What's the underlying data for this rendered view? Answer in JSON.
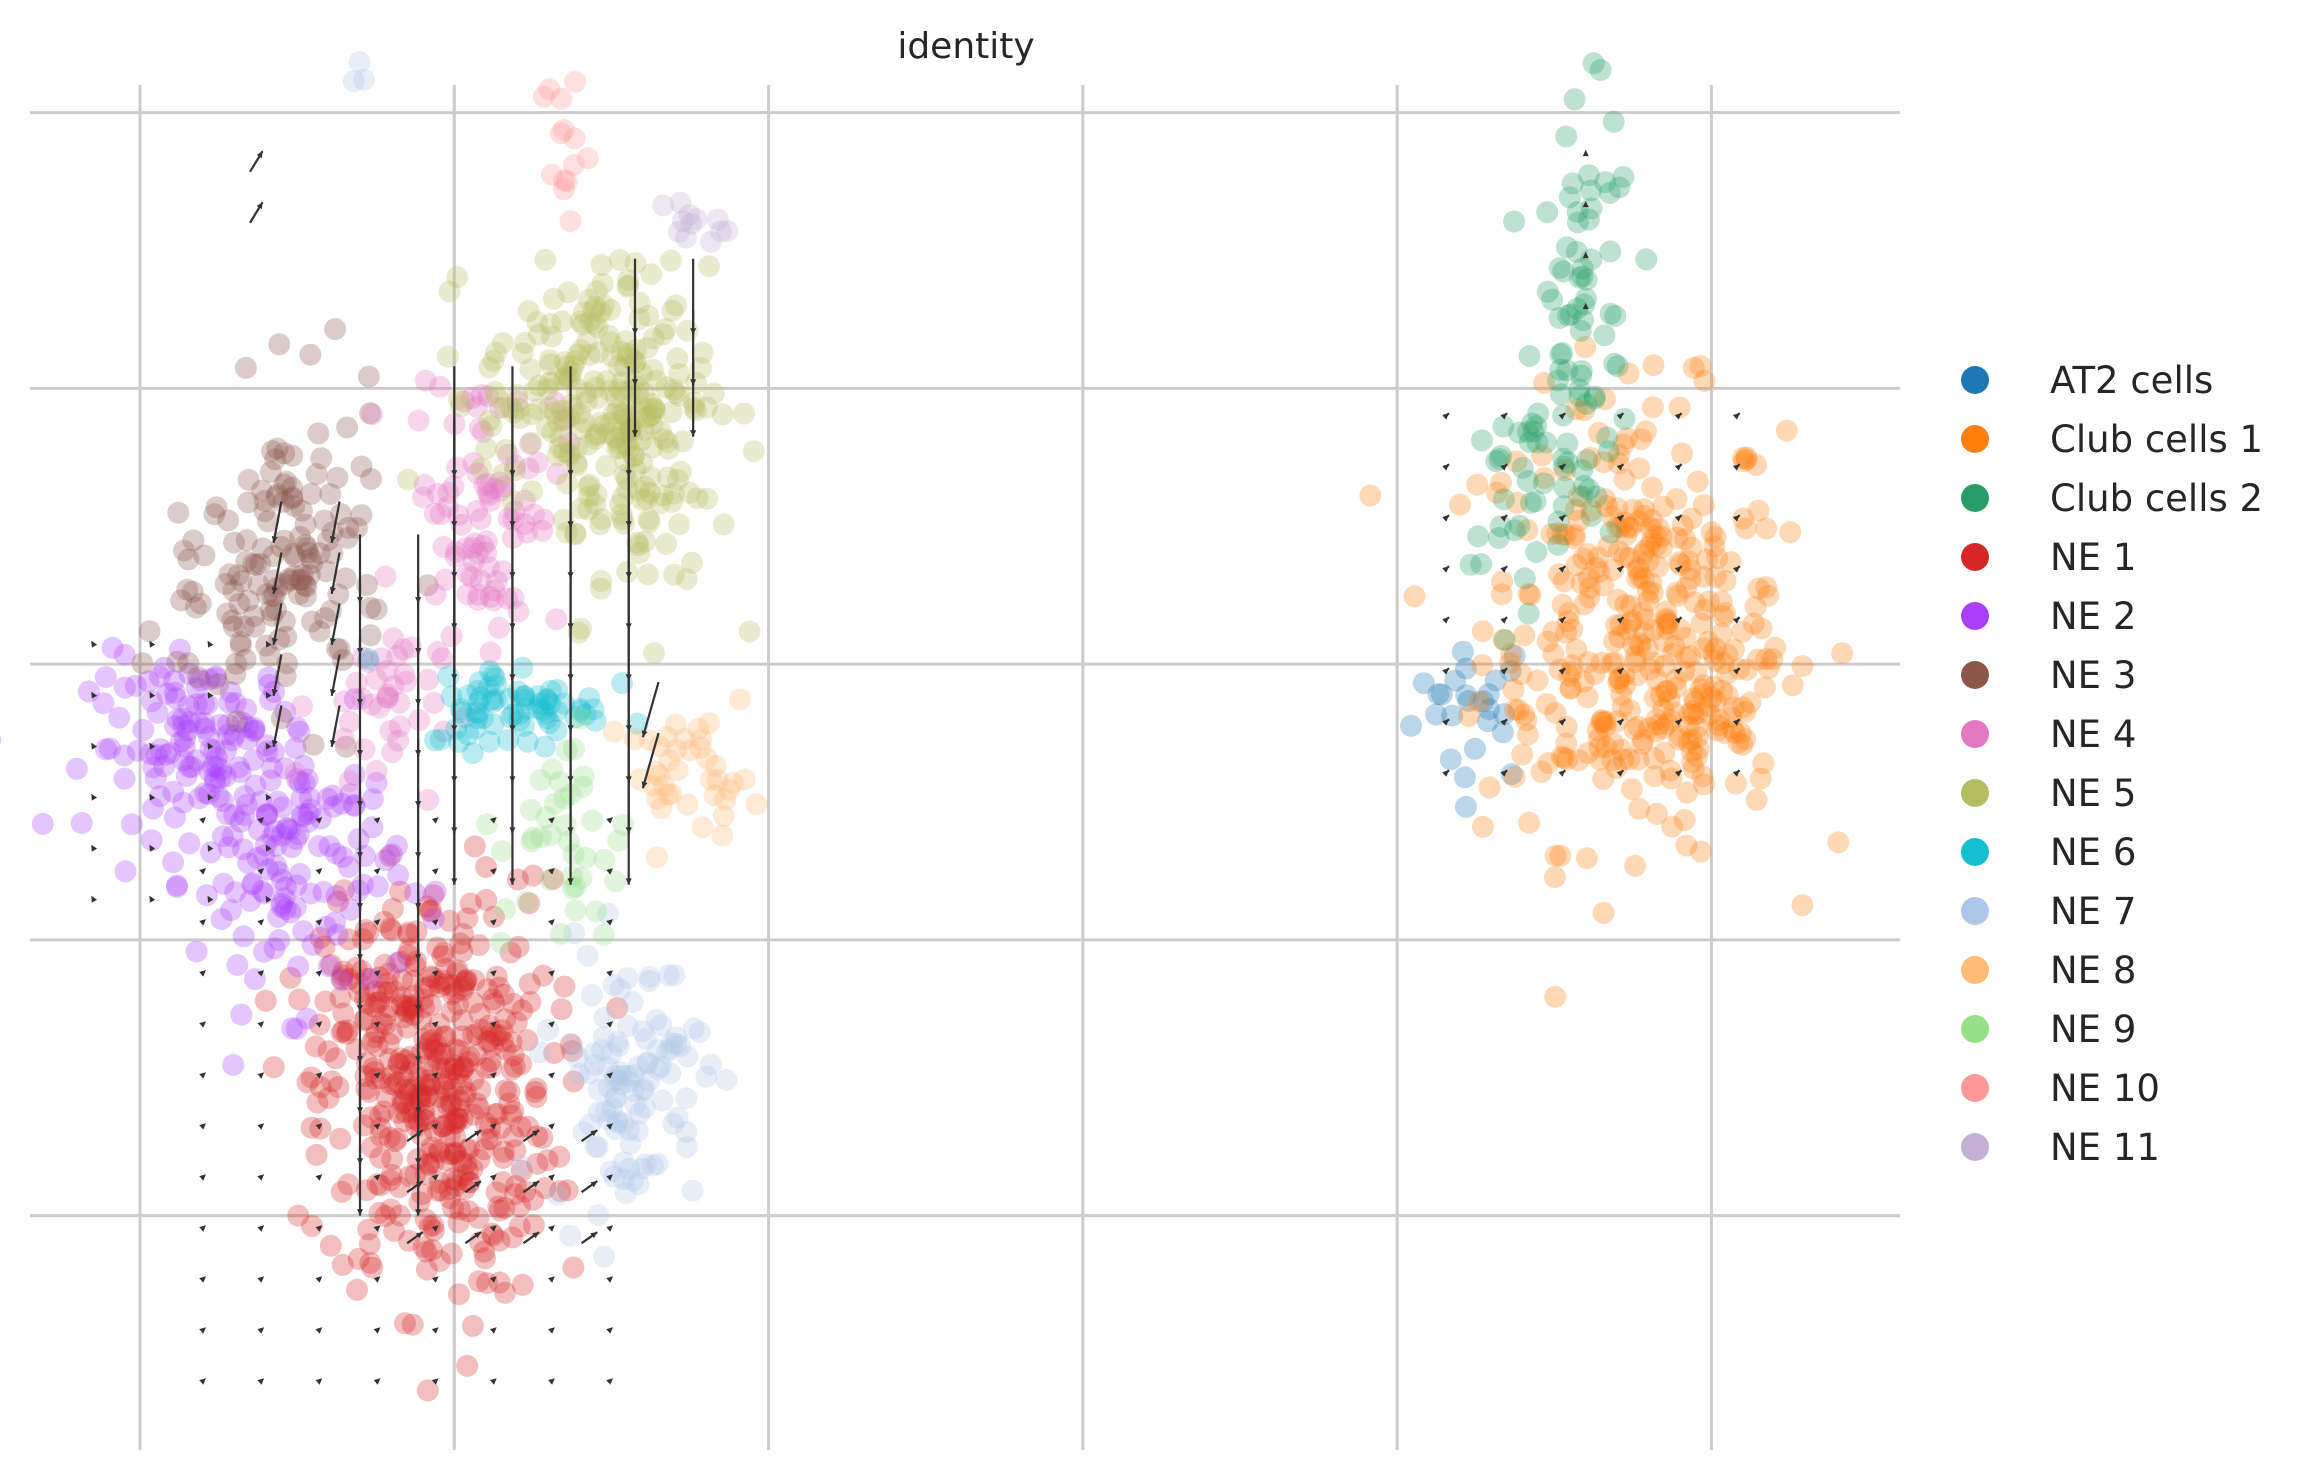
{
  "chart_data": {
    "type": "scatter",
    "title": "identity",
    "xlabel": "",
    "ylabel": "",
    "grid": true,
    "legend_position": "right",
    "x_gridlines": [
      -4,
      -2,
      0,
      2,
      4,
      6
    ],
    "y_gridlines": [
      -4,
      -2,
      0,
      2,
      4
    ],
    "xlim": [
      -4.7,
      7.2
    ],
    "ylim": [
      -5.7,
      4.2
    ],
    "overlay": "velocity-arrows",
    "series": [
      {
        "name": "AT2 cells",
        "color": "#1f77b4",
        "clusters": [
          {
            "cx": 4.5,
            "cy": -0.3,
            "sx": 0.25,
            "sy": 0.35,
            "n": 25
          }
        ]
      },
      {
        "name": "Club cells 1",
        "color": "#ff7f0e",
        "clusters": [
          {
            "cx": 5.5,
            "cy": 0.3,
            "sx": 0.6,
            "sy": 1.0,
            "n": 330
          },
          {
            "cx": 5.9,
            "cy": -0.4,
            "sx": 0.35,
            "sy": 0.35,
            "n": 60
          }
        ]
      },
      {
        "name": "Club cells 2",
        "color": "#279e68",
        "clusters": [
          {
            "cx": 5.2,
            "cy": 2.4,
            "sx": 0.2,
            "sy": 1.0,
            "n": 80
          },
          {
            "cx": 4.8,
            "cy": 1.3,
            "sx": 0.25,
            "sy": 0.35,
            "n": 30
          }
        ]
      },
      {
        "name": "NE 1",
        "color": "#d62728",
        "clusters": [
          {
            "cx": -2.1,
            "cy": -3.1,
            "sx": 0.45,
            "sy": 0.95,
            "n": 420
          },
          {
            "cx": -2.6,
            "cy": -2.6,
            "sx": 0.25,
            "sy": 0.5,
            "n": 40
          }
        ]
      },
      {
        "name": "NE 2",
        "color": "#aa40fc",
        "clusters": [
          {
            "cx": -3.6,
            "cy": -0.6,
            "sx": 0.45,
            "sy": 0.4,
            "n": 130
          },
          {
            "cx": -3.0,
            "cy": -1.5,
            "sx": 0.4,
            "sy": 0.6,
            "n": 120
          }
        ]
      },
      {
        "name": "NE 3",
        "color": "#8c564b",
        "clusters": [
          {
            "cx": -3.0,
            "cy": 0.8,
            "sx": 0.35,
            "sy": 0.7,
            "n": 110
          },
          {
            "cx": -3.4,
            "cy": 0.3,
            "sx": 0.3,
            "sy": 0.4,
            "n": 40
          }
        ]
      },
      {
        "name": "NE 4",
        "color": "#e377c2",
        "clusters": [
          {
            "cx": -1.8,
            "cy": 1.2,
            "sx": 0.3,
            "sy": 0.6,
            "n": 90
          },
          {
            "cx": -2.5,
            "cy": -0.3,
            "sx": 0.25,
            "sy": 0.4,
            "n": 40
          }
        ]
      },
      {
        "name": "NE 5",
        "color": "#b5bd61",
        "clusters": [
          {
            "cx": -1.1,
            "cy": 2.0,
            "sx": 0.45,
            "sy": 0.55,
            "n": 220
          },
          {
            "cx": -0.8,
            "cy": 1.1,
            "sx": 0.3,
            "sy": 0.5,
            "n": 60
          }
        ]
      },
      {
        "name": "NE 6",
        "color": "#17becf",
        "clusters": [
          {
            "cx": -1.6,
            "cy": -0.3,
            "sx": 0.35,
            "sy": 0.2,
            "n": 70
          }
        ]
      },
      {
        "name": "NE 7",
        "color": "#aec7e8",
        "clusters": [
          {
            "cx": -0.9,
            "cy": -3.0,
            "sx": 0.3,
            "sy": 0.6,
            "n": 110
          },
          {
            "cx": -2.6,
            "cy": 4.3,
            "sx": 0.05,
            "sy": 0.05,
            "n": 3
          }
        ]
      },
      {
        "name": "NE 8",
        "color": "#ffbb78",
        "clusters": [
          {
            "cx": -0.5,
            "cy": -0.8,
            "sx": 0.25,
            "sy": 0.25,
            "n": 40
          }
        ]
      },
      {
        "name": "NE 9",
        "color": "#98df8a",
        "clusters": [
          {
            "cx": -1.3,
            "cy": -1.3,
            "sx": 0.25,
            "sy": 0.55,
            "n": 40
          }
        ]
      },
      {
        "name": "NE 10",
        "color": "#ff9896",
        "clusters": [
          {
            "cx": -1.3,
            "cy": 3.8,
            "sx": 0.1,
            "sy": 0.4,
            "n": 14
          }
        ]
      },
      {
        "name": "NE 11",
        "color": "#c5b0d5",
        "clusters": [
          {
            "cx": -0.5,
            "cy": 3.2,
            "sx": 0.12,
            "sy": 0.12,
            "n": 12
          }
        ]
      }
    ],
    "arrow_regions": [
      {
        "x": [
          -2.0,
          -0.7
        ],
        "y": [
          -0.8,
          2.5
        ],
        "dx": 0,
        "dy": -0.8
      },
      {
        "x": [
          -2.6,
          -2.1
        ],
        "y": [
          -3.5,
          1.2
        ],
        "dx": 0,
        "dy": -0.5
      },
      {
        "x": [
          -3.1,
          -2.7
        ],
        "y": [
          -0.3,
          1.5
        ],
        "dx": -0.05,
        "dy": -0.3
      },
      {
        "x": [
          -0.85,
          -0.4
        ],
        "y": [
          2.2,
          3.2
        ],
        "dx": 0,
        "dy": -0.55
      },
      {
        "x": [
          -0.7,
          -0.5
        ],
        "y": [
          -0.5,
          0.2
        ],
        "dx": -0.1,
        "dy": -0.4
      },
      {
        "x": [
          -3.3,
          -3.3
        ],
        "y": [
          3.2,
          3.6
        ],
        "dx": 0.08,
        "dy": 0.15
      },
      {
        "x": [
          -2.3,
          -1.0
        ],
        "y": [
          -4.2,
          -3.1
        ],
        "dx": 0.1,
        "dy": 0.08
      },
      {
        "x": [
          -3.6,
          -0.7
        ],
        "y": [
          -5.2,
          -1.0
        ],
        "dx": 0.02,
        "dy": 0.02
      },
      {
        "x": [
          -4.3,
          -3.0
        ],
        "y": [
          -1.7,
          0.3
        ],
        "dx": -0.01,
        "dy": 0.02
      },
      {
        "x": [
          4.3,
          6.4
        ],
        "y": [
          -0.8,
          2.1
        ],
        "dx": 0.03,
        "dy": 0.03
      },
      {
        "x": [
          5.2,
          5.4
        ],
        "y": [
          2.6,
          4.0
        ],
        "dx": 0,
        "dy": 0.02
      }
    ]
  }
}
